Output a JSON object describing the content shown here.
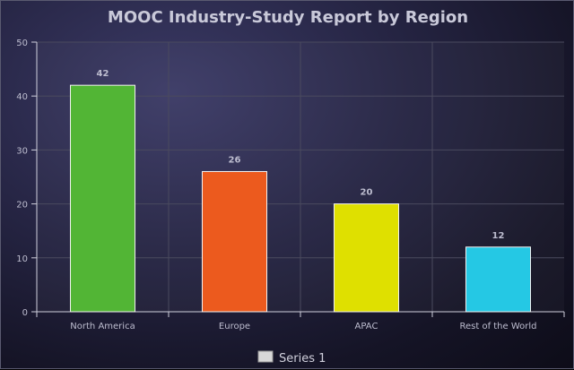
{
  "chart_data": {
    "type": "bar",
    "title": "MOOC Industry-Study Report by Region",
    "xlabel": "",
    "ylabel": "",
    "categories": [
      "North America",
      "Europe",
      "APAC",
      "Rest of the World"
    ],
    "series": [
      {
        "name": "Series 1",
        "values": [
          42,
          26,
          20,
          12
        ]
      }
    ],
    "bar_colors": [
      "#52b535",
      "#ec5a1e",
      "#dfe000",
      "#25c8e4"
    ],
    "ylim": [
      0,
      50
    ],
    "yticks": [
      0,
      10,
      20,
      30,
      40,
      50
    ],
    "grid": true,
    "data_labels": true,
    "legend_position": "bottom",
    "legend_swatch_color": "#d8d8d8"
  },
  "colors": {
    "background": "#1d1c36",
    "text": "#bdbdcf",
    "grid": "#4a4a5e",
    "axis": "#cfcfdc"
  }
}
